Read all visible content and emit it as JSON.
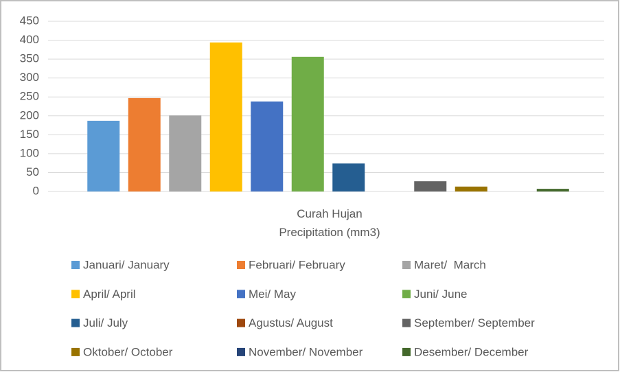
{
  "chart_data": {
    "type": "bar",
    "categories": [
      "Curah Hujan\nPrecipitation (mm3)"
    ],
    "series": [
      {
        "name": "Januari/ January",
        "color": "#5b9bd5",
        "values": [
          187
        ]
      },
      {
        "name": "Februari/ February",
        "color": "#ed7d31",
        "values": [
          247
        ]
      },
      {
        "name": "Maret/  March",
        "color": "#a5a5a5",
        "values": [
          201
        ]
      },
      {
        "name": "April/ April",
        "color": "#ffc000",
        "values": [
          394
        ]
      },
      {
        "name": "Mei/ May",
        "color": "#4472c4",
        "values": [
          238
        ]
      },
      {
        "name": "Juni/ June",
        "color": "#70ad47",
        "values": [
          356
        ]
      },
      {
        "name": "Juli/ July",
        "color": "#255e91",
        "values": [
          74
        ]
      },
      {
        "name": "Agustus/ August",
        "color": "#9e480e",
        "values": [
          0
        ]
      },
      {
        "name": "September/ September",
        "color": "#636363",
        "values": [
          27
        ]
      },
      {
        "name": "Oktober/ October",
        "color": "#997300",
        "values": [
          13
        ]
      },
      {
        "name": "November/ November",
        "color": "#264478",
        "values": [
          0
        ]
      },
      {
        "name": "Desember/ December",
        "color": "#43682b",
        "values": [
          7
        ]
      }
    ],
    "ylim": [
      0,
      450
    ],
    "yticks": [
      0,
      50,
      100,
      150,
      200,
      250,
      300,
      350,
      400,
      450
    ],
    "grid": true,
    "legend": "bottom"
  }
}
